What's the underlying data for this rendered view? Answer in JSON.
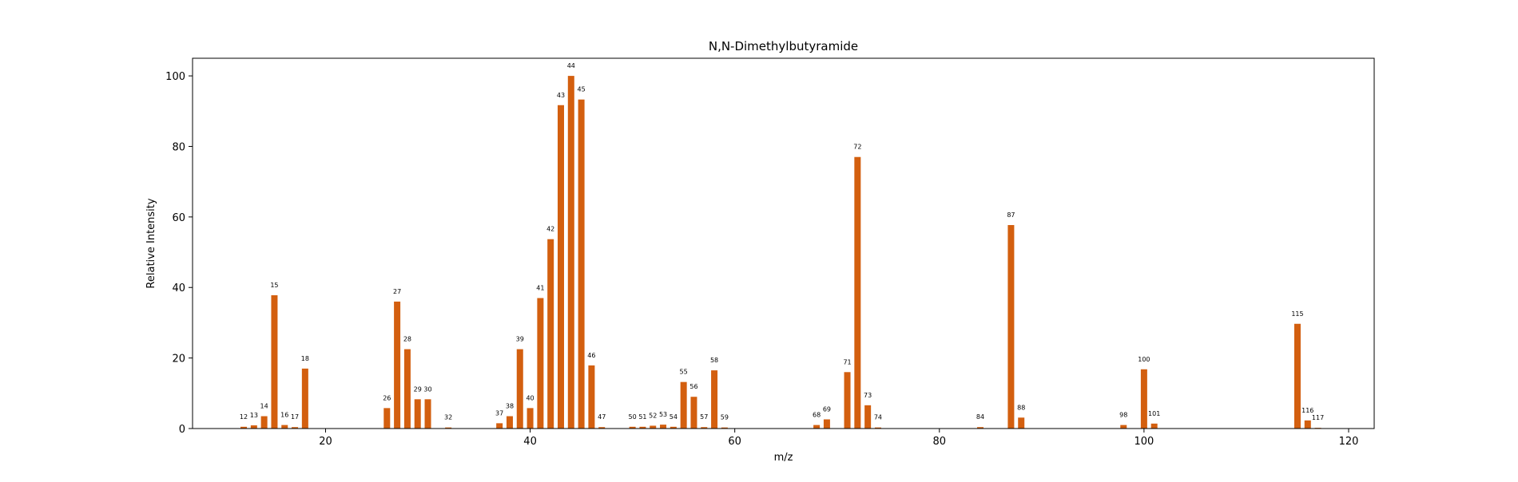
{
  "chart_data": {
    "type": "bar",
    "title": "N,N-Dimethylbutyramide",
    "xlabel": "m/z",
    "ylabel": "Relative Intensity",
    "xlim": [
      7,
      122.5
    ],
    "ylim": [
      0,
      105
    ],
    "xticks": [
      20,
      40,
      60,
      80,
      100,
      120
    ],
    "yticks": [
      0,
      20,
      40,
      60,
      80,
      100
    ],
    "grid": false,
    "bar_color": "#d35f0f",
    "x": [
      12,
      13,
      14,
      15,
      16,
      17,
      18,
      26,
      27,
      28,
      29,
      30,
      32,
      37,
      38,
      39,
      40,
      41,
      42,
      43,
      44,
      45,
      46,
      47,
      50,
      51,
      52,
      53,
      54,
      55,
      56,
      57,
      58,
      59,
      68,
      69,
      71,
      72,
      73,
      74,
      84,
      87,
      88,
      98,
      100,
      101,
      115,
      116,
      117
    ],
    "labels": [
      "12",
      "13",
      "14",
      "15",
      "16",
      "17",
      "18",
      "26",
      "27",
      "28",
      "29",
      "30",
      "32",
      "37",
      "38",
      "39",
      "40",
      "41",
      "42",
      "43",
      "44",
      "45",
      "46",
      "47",
      "50",
      "51",
      "52",
      "53",
      "54",
      "55",
      "56",
      "57",
      "58",
      "59",
      "68",
      "69",
      "71",
      "72",
      "73",
      "74",
      "84",
      "87",
      "88",
      "98",
      "100",
      "101",
      "115",
      "116",
      "117"
    ],
    "values": [
      0.5,
      0.9,
      3.5,
      37.8,
      1.0,
      0.4,
      17.0,
      5.8,
      36.0,
      22.5,
      8.3,
      8.3,
      0.3,
      1.5,
      3.5,
      22.5,
      5.8,
      37.0,
      53.7,
      91.7,
      100.0,
      93.3,
      17.9,
      0.4,
      0.5,
      0.5,
      0.8,
      1.1,
      0.5,
      13.2,
      9.0,
      0.4,
      16.5,
      0.3,
      1.0,
      2.6,
      16.0,
      77.0,
      6.6,
      0.3,
      0.4,
      57.7,
      3.1,
      1.0,
      16.8,
      1.4,
      29.7,
      2.3,
      0.2
    ]
  }
}
